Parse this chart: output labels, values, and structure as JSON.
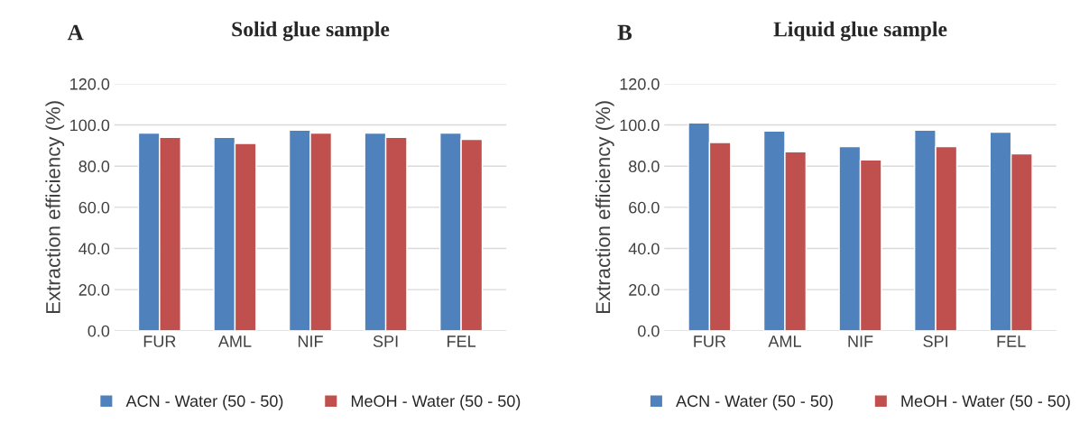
{
  "chart_data": [
    {
      "type": "bar",
      "title": "Solid glue sample",
      "annotations": [
        "A"
      ],
      "ylabel": "Extraction efficiency (%)",
      "categories": [
        "FUR",
        "AML",
        "NIF",
        "SPI",
        "FEL"
      ],
      "series": [
        {
          "name": "ACN - Water (50 - 50)",
          "color": "#4f81bd",
          "values": [
            96,
            94,
            97.5,
            96,
            96
          ]
        },
        {
          "name": "MeOH - Water (50 - 50)",
          "color": "#c0504d",
          "values": [
            94,
            91,
            96,
            94,
            93
          ]
        }
      ],
      "ylim": [
        0,
        120
      ],
      "yticks": [
        {
          "value": 0,
          "label": "0.0"
        },
        {
          "value": 20,
          "label": "20.0"
        },
        {
          "value": 40,
          "label": "40.0"
        },
        {
          "value": 60,
          "label": "60.0"
        },
        {
          "value": 80,
          "label": "80.0"
        },
        {
          "value": 100,
          "label": "100.0"
        },
        {
          "value": 120,
          "label": "120.0"
        }
      ],
      "grid": "y",
      "legend": "bottom"
    },
    {
      "type": "bar",
      "title": "Liquid glue sample",
      "annotations": [
        "B"
      ],
      "ylabel": "Extraction efficiency (%)",
      "categories": [
        "FUR",
        "AML",
        "NIF",
        "SPI",
        "FEL"
      ],
      "series": [
        {
          "name": "ACN - Water (50 - 50)",
          "color": "#4f81bd",
          "values": [
            101,
            97,
            89.5,
            97.5,
            96.5
          ]
        },
        {
          "name": "MeOH - Water (50 - 50)",
          "color": "#c0504d",
          "values": [
            91.5,
            87,
            83,
            89.5,
            86
          ]
        }
      ],
      "ylim": [
        0,
        120
      ],
      "yticks": [
        {
          "value": 0,
          "label": "0.0"
        },
        {
          "value": 20,
          "label": "20.0"
        },
        {
          "value": 40,
          "label": "40.0"
        },
        {
          "value": 60,
          "label": "60.0"
        },
        {
          "value": 80,
          "label": "80.0"
        },
        {
          "value": 100,
          "label": "100.0"
        },
        {
          "value": 120,
          "label": "120.0"
        }
      ],
      "grid": "y",
      "legend": "bottom"
    }
  ]
}
